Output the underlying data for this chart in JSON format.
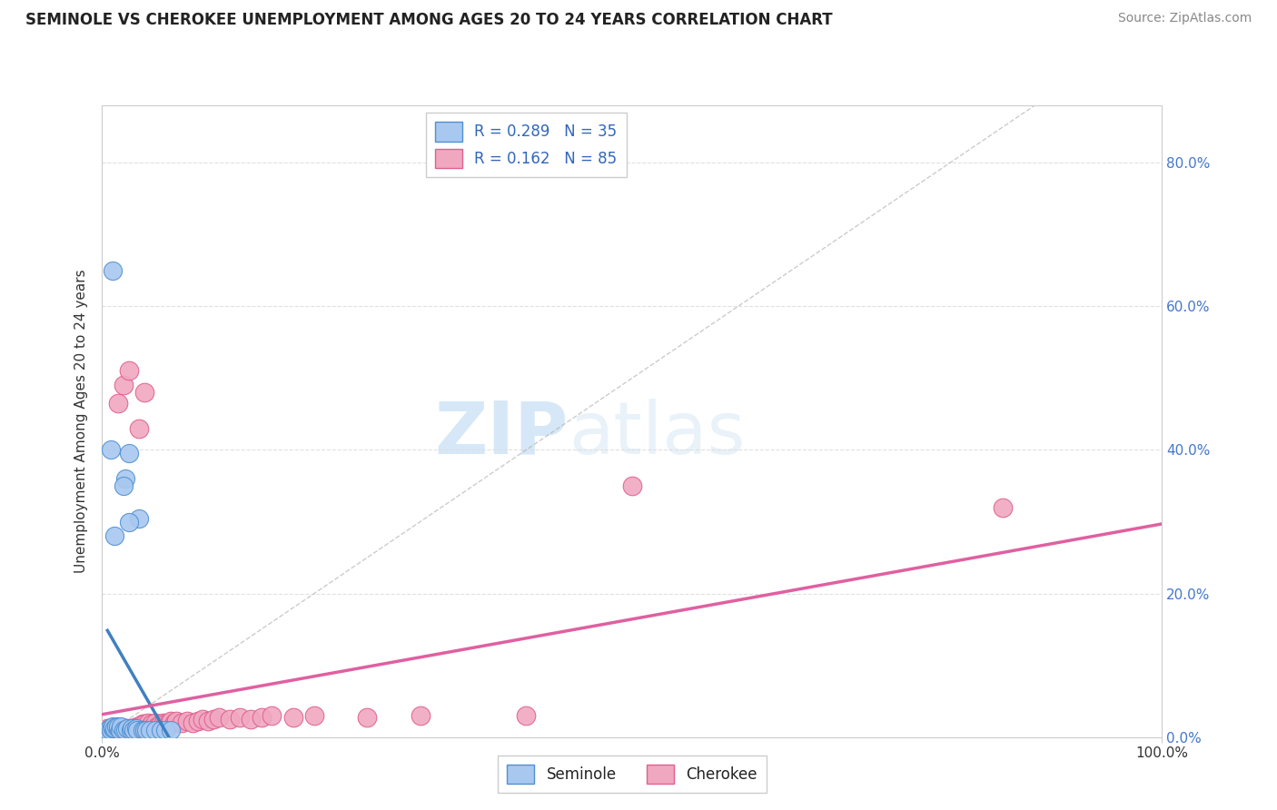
{
  "title": "SEMINOLE VS CHEROKEE UNEMPLOYMENT AMONG AGES 20 TO 24 YEARS CORRELATION CHART",
  "source": "Source: ZipAtlas.com",
  "ylabel": "Unemployment Among Ages 20 to 24 years",
  "ytick_vals": [
    0.0,
    0.2,
    0.4,
    0.6,
    0.8
  ],
  "ytick_labels": [
    "0.0%",
    "20.0%",
    "40.0%",
    "60.0%",
    "80.0%"
  ],
  "xlim": [
    0.0,
    1.0
  ],
  "ylim": [
    0.0,
    0.88
  ],
  "seminole_color": "#a8c8f0",
  "cherokee_color": "#f0a8c0",
  "seminole_edge": "#5090d0",
  "cherokee_edge": "#e06090",
  "trend_color_seminole": "#4080c0",
  "trend_color_cherokee": "#e060a0",
  "diag_color": "#aaaaaa",
  "background_color": "#ffffff",
  "watermark_zip": "ZIP",
  "watermark_atlas": "atlas",
  "seminole_x": [
    0.005,
    0.007,
    0.008,
    0.01,
    0.01,
    0.012,
    0.013,
    0.015,
    0.015,
    0.017,
    0.018,
    0.02,
    0.022,
    0.022,
    0.024,
    0.025,
    0.027,
    0.028,
    0.03,
    0.032,
    0.033,
    0.035,
    0.038,
    0.04,
    0.042,
    0.045,
    0.05,
    0.055,
    0.06,
    0.065,
    0.01,
    0.02,
    0.025,
    0.008,
    0.012
  ],
  "seminole_y": [
    0.01,
    0.012,
    0.01,
    0.012,
    0.015,
    0.012,
    0.015,
    0.012,
    0.015,
    0.01,
    0.015,
    0.01,
    0.01,
    0.36,
    0.012,
    0.395,
    0.01,
    0.012,
    0.01,
    0.012,
    0.01,
    0.305,
    0.01,
    0.01,
    0.01,
    0.01,
    0.01,
    0.01,
    0.01,
    0.01,
    0.65,
    0.35,
    0.3,
    0.4,
    0.28
  ],
  "cherokee_x": [
    0.003,
    0.004,
    0.005,
    0.005,
    0.006,
    0.007,
    0.007,
    0.008,
    0.008,
    0.009,
    0.01,
    0.01,
    0.011,
    0.012,
    0.012,
    0.013,
    0.013,
    0.014,
    0.015,
    0.015,
    0.016,
    0.017,
    0.018,
    0.018,
    0.019,
    0.02,
    0.02,
    0.022,
    0.022,
    0.023,
    0.025,
    0.025,
    0.027,
    0.028,
    0.028,
    0.03,
    0.03,
    0.032,
    0.032,
    0.033,
    0.035,
    0.035,
    0.037,
    0.038,
    0.04,
    0.04,
    0.042,
    0.043,
    0.045,
    0.047,
    0.05,
    0.05,
    0.052,
    0.055,
    0.058,
    0.06,
    0.063,
    0.065,
    0.068,
    0.07,
    0.075,
    0.08,
    0.085,
    0.09,
    0.095,
    0.1,
    0.105,
    0.11,
    0.12,
    0.13,
    0.14,
    0.15,
    0.16,
    0.18,
    0.2,
    0.25,
    0.3,
    0.4,
    0.5,
    0.85,
    0.015,
    0.02,
    0.025,
    0.035,
    0.04
  ],
  "cherokee_y": [
    0.008,
    0.01,
    0.008,
    0.012,
    0.01,
    0.008,
    0.012,
    0.008,
    0.012,
    0.01,
    0.008,
    0.012,
    0.01,
    0.008,
    0.012,
    0.008,
    0.012,
    0.01,
    0.008,
    0.012,
    0.01,
    0.008,
    0.01,
    0.012,
    0.008,
    0.008,
    0.012,
    0.008,
    0.012,
    0.01,
    0.008,
    0.012,
    0.01,
    0.008,
    0.012,
    0.008,
    0.012,
    0.01,
    0.012,
    0.015,
    0.01,
    0.015,
    0.012,
    0.018,
    0.012,
    0.018,
    0.015,
    0.02,
    0.015,
    0.018,
    0.015,
    0.02,
    0.015,
    0.018,
    0.02,
    0.018,
    0.02,
    0.022,
    0.02,
    0.022,
    0.02,
    0.022,
    0.02,
    0.022,
    0.025,
    0.022,
    0.025,
    0.028,
    0.025,
    0.028,
    0.025,
    0.028,
    0.03,
    0.028,
    0.03,
    0.028,
    0.03,
    0.03,
    0.35,
    0.32,
    0.465,
    0.49,
    0.51,
    0.43,
    0.48
  ]
}
